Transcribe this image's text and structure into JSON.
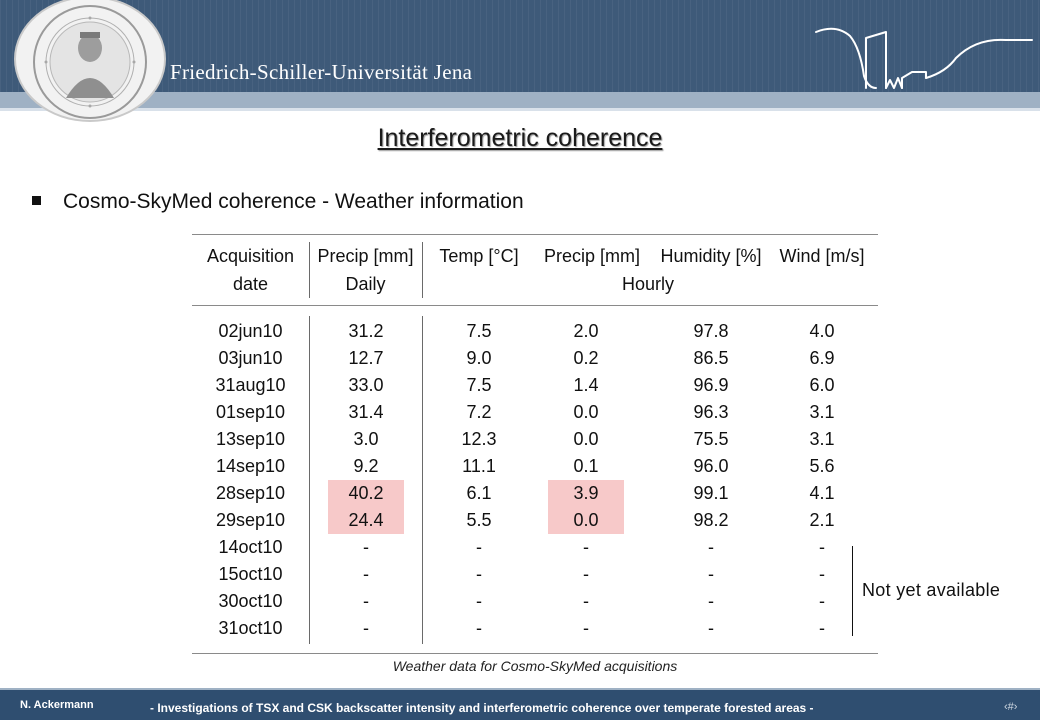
{
  "header": {
    "university": "Friedrich-Schiller-Universität Jena"
  },
  "title": "Interferometric coherence",
  "bullet": "Cosmo-SkyMed coherence - Weather information",
  "table": {
    "headers": {
      "acq": [
        "Acquisition",
        "date"
      ],
      "precip_daily": [
        "Precip [mm]",
        "Daily"
      ],
      "temp": "Temp [°C]",
      "precip_hourly": "Precip [mm]",
      "humidity": "Humidity [%]",
      "wind": "Wind [m/s]",
      "hourly": "Hourly"
    },
    "rows": [
      [
        "02jun10",
        "31.2",
        "7.5",
        "2.0",
        "97.8",
        "4.0"
      ],
      [
        "03jun10",
        "12.7",
        "9.0",
        "0.2",
        "86.5",
        "6.9"
      ],
      [
        "31aug10",
        "33.0",
        "7.5",
        "1.4",
        "96.9",
        "6.0"
      ],
      [
        "01sep10",
        "31.4",
        "7.2",
        "0.0",
        "96.3",
        "3.1"
      ],
      [
        "13sep10",
        "3.0",
        "12.3",
        "0.0",
        "75.5",
        "3.1"
      ],
      [
        "14sep10",
        "9.2",
        "11.1",
        "0.1",
        "96.0",
        "5.6"
      ],
      [
        "28sep10",
        "40.2",
        "6.1",
        "3.9",
        "99.1",
        "4.1"
      ],
      [
        "29sep10",
        "24.4",
        "5.5",
        "0.0",
        "98.2",
        "2.1"
      ],
      [
        "14oct10",
        "-",
        "-",
        "-",
        "-",
        "-"
      ],
      [
        "15oct10",
        "-",
        "-",
        "-",
        "-",
        "-"
      ],
      [
        "30oct10",
        "-",
        "-",
        "-",
        "-",
        "-"
      ],
      [
        "31oct10",
        "-",
        "-",
        "-",
        "-",
        "-"
      ]
    ],
    "highlight_color": "#f7c9c9",
    "highlighted_rows": [
      "28sep10",
      "29sep10"
    ],
    "highlighted_columns": [
      "Precip [mm] Daily",
      "Precip [mm] Hourly"
    ]
  },
  "caption": "Weather data for Cosmo-SkyMed acquisitions",
  "not_available": "Not yet available",
  "footer": {
    "author": "N. Ackermann",
    "text": "- Investigations of TSX and CSK backscatter intensity and interferometric coherence over temperate forested areas -",
    "slide_number": "‹#›"
  }
}
